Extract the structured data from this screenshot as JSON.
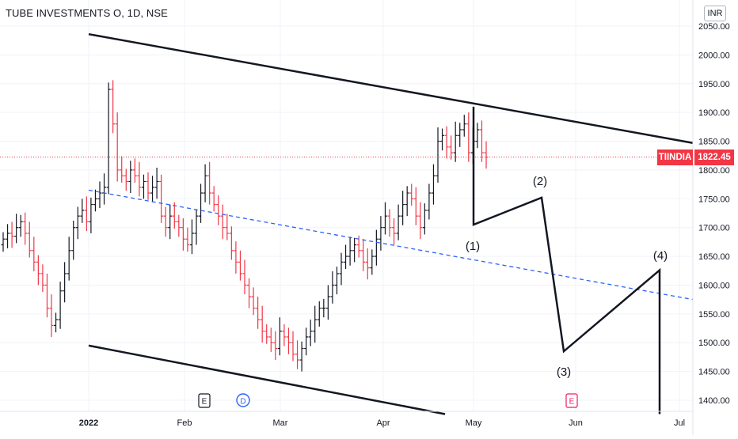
{
  "header": {
    "symbol_title": "TUBE INVESTMENTS O, 1D, NSE",
    "currency": "INR"
  },
  "price_tag": {
    "symbol": "TIINDIA",
    "last": "1822.45"
  },
  "event_markers": [
    {
      "label": "E",
      "kind": "earnings"
    },
    {
      "label": "D",
      "kind": "dividend"
    },
    {
      "label": "E",
      "kind": "earnings-upcoming"
    }
  ],
  "colors": {
    "up": "#131722",
    "down": "#f23645",
    "midline": "#2962ff",
    "channel": "#131722"
  },
  "chart_data": {
    "type": "ohlc",
    "title": "TUBE INVESTMENTS O, 1D, NSE",
    "ylabel": "INR",
    "ylim": [
      1370,
      2065
    ],
    "y_ticks": [
      "2050.00",
      "2000.00",
      "1950.00",
      "1900.00",
      "1850.00",
      "1800.00",
      "1750.00",
      "1700.00",
      "1650.00",
      "1600.00",
      "1550.00",
      "1500.00",
      "1450.00",
      "1400.00"
    ],
    "x_ticks": [
      "2022",
      "Feb",
      "Mar",
      "Apr",
      "May",
      "Jun",
      "Jul"
    ],
    "last_price": 1822.45,
    "bars_close": [
      1680,
      1690,
      1685,
      1700,
      1710,
      1690,
      1660,
      1640,
      1620,
      1600,
      1560,
      1530,
      1540,
      1590,
      1620,
      1660,
      1700,
      1720,
      1730,
      1710,
      1740,
      1750,
      1760,
      1770,
      1940,
      1880,
      1800,
      1790,
      1780,
      1800,
      1790,
      1770,
      1780,
      1760,
      1770,
      1780,
      1720,
      1700,
      1720,
      1710,
      1700,
      1680,
      1670,
      1690,
      1720,
      1760,
      1790,
      1760,
      1740,
      1720,
      1700,
      1690,
      1660,
      1640,
      1620,
      1600,
      1580,
      1560,
      1540,
      1520,
      1510,
      1500,
      1490,
      1520,
      1510,
      1500,
      1480,
      1470,
      1490,
      1510,
      1520,
      1540,
      1560,
      1560,
      1580,
      1600,
      1620,
      1640,
      1650,
      1660,
      1670,
      1660,
      1640,
      1630,
      1650,
      1680,
      1700,
      1720,
      1700,
      1690,
      1720,
      1740,
      1760,
      1750,
      1720,
      1700,
      1730,
      1760,
      1790,
      1850,
      1860,
      1840,
      1830,
      1860,
      1870,
      1880,
      1830,
      1850,
      1870,
      1830,
      1822.45
    ],
    "drawings": {
      "upper_channel_price": [
        2036,
        1847
      ],
      "lower_channel_price": [
        1495,
        1376
      ],
      "midline_price": [
        1765,
        1575
      ],
      "wave_path_price": [
        1910,
        1705,
        1752,
        1485,
        1626,
        1376
      ],
      "wave_labels": [
        "(1)",
        "(2)",
        "(3)",
        "(4)"
      ]
    }
  }
}
